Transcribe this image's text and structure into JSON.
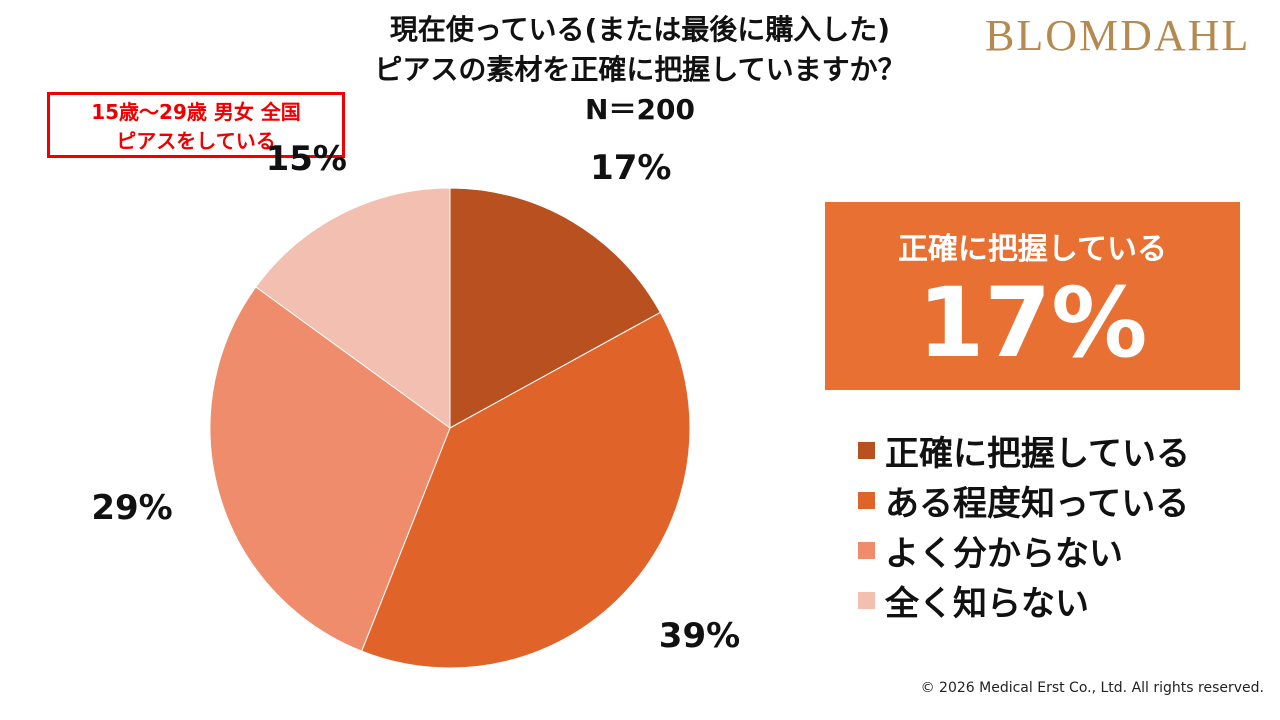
{
  "header": {
    "title_lines": [
      "現在使っている(または最後に購入した)",
      "ピアスの素材を正確に把握していますか？",
      "N＝200"
    ],
    "logo": "BLOMDAHL"
  },
  "sample_box": {
    "lines": [
      "15歳～29歳  男女  全国",
      "ピアスをしている"
    ]
  },
  "callout": {
    "label": "正確に把握している",
    "value": "17%"
  },
  "chart_data": {
    "type": "pie",
    "title": "現在使っている(または最後に購入した)ピアスの素材を正確に把握していますか？",
    "start": "top",
    "direction": "clockwise",
    "categories": [
      "正確に把握している",
      "ある程度知っている",
      "よく分からない",
      "全く知らない"
    ],
    "values": [
      17,
      39,
      29,
      15
    ],
    "labels": [
      "17%",
      "39%",
      "29%",
      "15%"
    ],
    "colors": [
      "#b9501f",
      "#e0632a",
      "#ee8c6c",
      "#f2bfb0"
    ],
    "legend_placement": "right"
  },
  "footer": {
    "copyright": "© 2026 Medical Erst Co., Ltd. All rights reserved."
  }
}
